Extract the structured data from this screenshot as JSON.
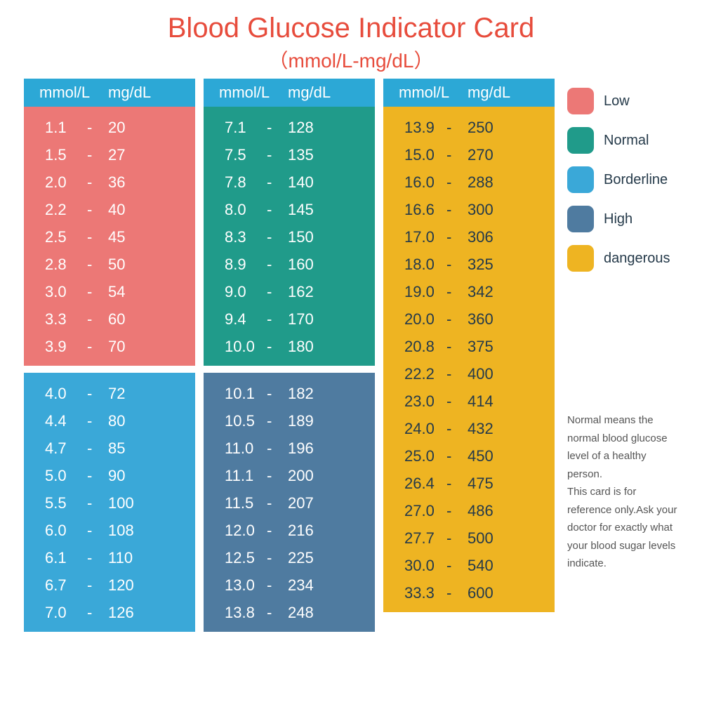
{
  "title": "Blood Glucose Indicator Card",
  "subtitle": "（mmol/L-mg/dL）",
  "title_color": "#e74c3c",
  "headers": {
    "mmol": "mmol/L",
    "mgdl": "mg/dL"
  },
  "header_bg": "#2ca8d6",
  "colors": {
    "low": "#ec7876",
    "normal": "#209b8a",
    "borderline": "#3aa8d8",
    "high": "#4f7ba0",
    "dangerous": "#eeb422"
  },
  "legend": [
    {
      "label": "Low",
      "color": "#ec7876"
    },
    {
      "label": "Normal",
      "color": "#209b8a"
    },
    {
      "label": "Borderline",
      "color": "#3aa8d8"
    },
    {
      "label": "High",
      "color": "#4f7ba0"
    },
    {
      "label": "dangerous",
      "color": "#eeb422"
    }
  ],
  "legend_text_color": "#253a4a",
  "columns": [
    {
      "blocks": [
        {
          "color": "#ec7876",
          "rows": [
            {
              "mmol": "1.1",
              "mgdl": "20"
            },
            {
              "mmol": "1.5",
              "mgdl": "27"
            },
            {
              "mmol": "2.0",
              "mgdl": "36"
            },
            {
              "mmol": "2.2",
              "mgdl": "40"
            },
            {
              "mmol": "2.5",
              "mgdl": "45"
            },
            {
              "mmol": "2.8",
              "mgdl": "50"
            },
            {
              "mmol": "3.0",
              "mgdl": "54"
            },
            {
              "mmol": "3.3",
              "mgdl": "60"
            },
            {
              "mmol": "3.9",
              "mgdl": "70"
            }
          ]
        },
        {
          "color": "#3aa8d8",
          "rows": [
            {
              "mmol": "4.0",
              "mgdl": "72"
            },
            {
              "mmol": "4.4",
              "mgdl": "80"
            },
            {
              "mmol": "4.7",
              "mgdl": "85"
            },
            {
              "mmol": "5.0",
              "mgdl": "90"
            },
            {
              "mmol": "5.5",
              "mgdl": "100"
            },
            {
              "mmol": "6.0",
              "mgdl": "108"
            },
            {
              "mmol": "6.1",
              "mgdl": "110"
            },
            {
              "mmol": "6.7",
              "mgdl": "120"
            },
            {
              "mmol": "7.0",
              "mgdl": "126"
            }
          ]
        }
      ]
    },
    {
      "blocks": [
        {
          "color": "#209b8a",
          "rows": [
            {
              "mmol": "7.1",
              "mgdl": "128"
            },
            {
              "mmol": "7.5",
              "mgdl": "135"
            },
            {
              "mmol": "7.8",
              "mgdl": "140"
            },
            {
              "mmol": "8.0",
              "mgdl": "145"
            },
            {
              "mmol": "8.3",
              "mgdl": "150"
            },
            {
              "mmol": "8.9",
              "mgdl": "160"
            },
            {
              "mmol": "9.0",
              "mgdl": "162"
            },
            {
              "mmol": "9.4",
              "mgdl": "170"
            },
            {
              "mmol": "10.0",
              "mgdl": "180"
            }
          ]
        },
        {
          "color": "#4f7ba0",
          "rows": [
            {
              "mmol": "10.1",
              "mgdl": "182"
            },
            {
              "mmol": "10.5",
              "mgdl": "189"
            },
            {
              "mmol": "11.0",
              "mgdl": "196"
            },
            {
              "mmol": "11.1",
              "mgdl": "200"
            },
            {
              "mmol": "11.5",
              "mgdl": "207"
            },
            {
              "mmol": "12.0",
              "mgdl": "216"
            },
            {
              "mmol": "12.5",
              "mgdl": "225"
            },
            {
              "mmol": "13.0",
              "mgdl": "234"
            },
            {
              "mmol": "13.8",
              "mgdl": "248"
            }
          ]
        }
      ]
    },
    {
      "blocks": [
        {
          "color": "#eeb422",
          "rows": [
            {
              "mmol": "13.9",
              "mgdl": "250"
            },
            {
              "mmol": "15.0",
              "mgdl": "270"
            },
            {
              "mmol": "16.0",
              "mgdl": "288"
            },
            {
              "mmol": "16.6",
              "mgdl": "300"
            },
            {
              "mmol": "17.0",
              "mgdl": "306"
            },
            {
              "mmol": "18.0",
              "mgdl": "325"
            },
            {
              "mmol": "19.0",
              "mgdl": "342"
            },
            {
              "mmol": "20.0",
              "mgdl": "360"
            },
            {
              "mmol": "20.8",
              "mgdl": "375"
            },
            {
              "mmol": "22.2",
              "mgdl": "400"
            },
            {
              "mmol": "23.0",
              "mgdl": "414"
            },
            {
              "mmol": "24.0",
              "mgdl": "432"
            },
            {
              "mmol": "25.0",
              "mgdl": "450"
            },
            {
              "mmol": "26.4",
              "mgdl": "475"
            },
            {
              "mmol": "27.0",
              "mgdl": "486"
            },
            {
              "mmol": "27.7",
              "mgdl": "500"
            },
            {
              "mmol": "30.0",
              "mgdl": "540"
            },
            {
              "mmol": "33.3",
              "mgdl": "600"
            }
          ]
        }
      ]
    }
  ],
  "disclaimer": "Normal means the normal blood glucose level of a healthy person.\nThis card is for reference only.Ask your doctor for exactly what your blood sugar levels indicate.",
  "disclaimer_color": "#555555",
  "row_text_color_map": {
    "#eeb422": "#253a4a"
  }
}
